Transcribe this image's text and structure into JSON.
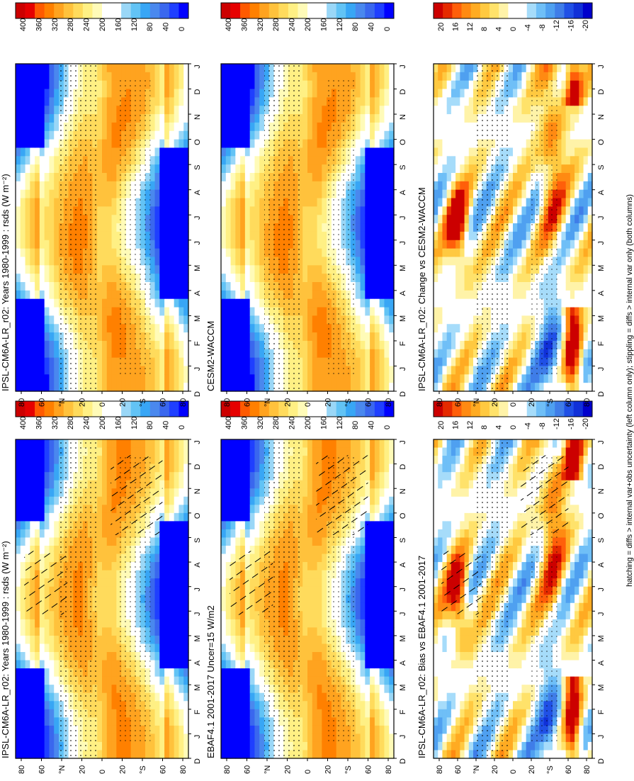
{
  "figure": {
    "footer_note": "hatching = diffs > internal var+obs uncertainty (left column only); stippling = diffs > internal var only (both columns)"
  },
  "colors": {
    "abs_scale": [
      "#0000ff",
      "#1f3fff",
      "#3a67ee",
      "#4a88ee",
      "#38a6f5",
      "#62c3f5",
      "#9ad7f7",
      "#ffffff",
      "#ffffff",
      "#fffbb8",
      "#fff084",
      "#ffdb5c",
      "#ffc23c",
      "#ffa31f",
      "#ff8000",
      "#ff5a00",
      "#e60000",
      "#cc0000"
    ],
    "diff_scale": [
      "#0000cc",
      "#1030d8",
      "#2050e6",
      "#3f7de8",
      "#4fa0f0",
      "#6fbff7",
      "#a6dcfa",
      "#ffffff",
      "#ffffff",
      "#fff3a8",
      "#ffe26a",
      "#ffc940",
      "#ffab22",
      "#ff8a12",
      "#ff5f0a",
      "#e52a00",
      "#cc0000"
    ]
  },
  "chart_data": [
    {
      "panel": "top-left",
      "type": "heatmap",
      "title": "IPSL-CM6A-LR_r02: Years 1980-1999 : rsds (W m⁻²)",
      "months": [
        "D",
        "J",
        "F",
        "M",
        "A",
        "M",
        "J",
        "J",
        "A",
        "S",
        "O",
        "N",
        "D",
        "J"
      ],
      "lat_ticks": [
        "80",
        "60",
        "°N",
        "20",
        "0",
        "20",
        "°S",
        "60",
        "80"
      ],
      "colorbar_ticks": [
        "400",
        "360",
        "320",
        "280",
        "240",
        "200",
        "160",
        "120",
        "80",
        "40",
        "0"
      ],
      "colorbar_range": [
        0,
        420
      ],
      "hatching": true,
      "stippling": true
    },
    {
      "panel": "top-right",
      "type": "heatmap",
      "title": "IPSL-CM6A-LR_r02: Years 1980-1999 : rsds (W m⁻²)",
      "months": [
        "D",
        "J",
        "F",
        "M",
        "A",
        "M",
        "J",
        "J",
        "A",
        "S",
        "O",
        "N",
        "D",
        "J"
      ],
      "lat_ticks": [
        "80",
        "60",
        "°N",
        "20",
        "0",
        "20",
        "°S",
        "60",
        "80"
      ],
      "colorbar_ticks": [
        "400",
        "360",
        "320",
        "280",
        "240",
        "200",
        "160",
        "120",
        "80",
        "40",
        "0"
      ],
      "colorbar_range": [
        0,
        420
      ],
      "hatching": false,
      "stippling": true
    },
    {
      "panel": "middle-left",
      "type": "heatmap",
      "title": "EBAF4.1 2001-2017 Uncer=15 W/m2",
      "months": [
        "D",
        "J",
        "F",
        "M",
        "A",
        "M",
        "J",
        "J",
        "A",
        "S",
        "O",
        "N",
        "D",
        "J"
      ],
      "lat_ticks": [
        "80",
        "60",
        "°N",
        "20",
        "0",
        "20",
        "°S",
        "60",
        "80"
      ],
      "colorbar_ticks": [
        "400",
        "360",
        "320",
        "280",
        "240",
        "200",
        "160",
        "120",
        "80",
        "40",
        "0"
      ],
      "colorbar_range": [
        0,
        420
      ],
      "hatching": true,
      "stippling": true
    },
    {
      "panel": "middle-right",
      "type": "heatmap",
      "title": "CESM2-WACCM",
      "months": [
        "D",
        "J",
        "F",
        "M",
        "A",
        "M",
        "J",
        "J",
        "A",
        "S",
        "O",
        "N",
        "D",
        "J"
      ],
      "lat_ticks": [
        "80",
        "60",
        "°N",
        "20",
        "0",
        "20",
        "°S",
        "60",
        "80"
      ],
      "colorbar_ticks": [
        "400",
        "360",
        "320",
        "280",
        "240",
        "200",
        "160",
        "120",
        "80",
        "40",
        "0"
      ],
      "colorbar_range": [
        0,
        420
      ],
      "hatching": false,
      "stippling": true
    },
    {
      "panel": "bottom-left",
      "type": "heatmap",
      "title": "IPSL-CM6A-LR_r02: Bias vs EBAF4.1 2001-2017",
      "months": [
        "D",
        "J",
        "F",
        "M",
        "A",
        "M",
        "J",
        "J",
        "A",
        "S",
        "O",
        "N",
        "D",
        "J"
      ],
      "lat_ticks": [
        "80",
        "60",
        "°N",
        "20",
        "0",
        "20",
        "°S",
        "60",
        "80"
      ],
      "colorbar_ticks": [
        "20",
        "16",
        "12",
        "8",
        "4",
        "0",
        "-4",
        "-8",
        "-12",
        "-16",
        "-20"
      ],
      "colorbar_range": [
        -22,
        22
      ],
      "hatching": true,
      "stippling": true
    },
    {
      "panel": "bottom-right",
      "type": "heatmap",
      "title": "IPSL-CM6A-LR_r02: Change vs CESM2-WACCM",
      "months": [
        "D",
        "J",
        "F",
        "M",
        "A",
        "M",
        "J",
        "J",
        "A",
        "S",
        "O",
        "N",
        "D",
        "J"
      ],
      "lat_ticks": [
        "80",
        "60",
        "°N",
        "20",
        "0",
        "20",
        "°S",
        "60",
        "80"
      ],
      "colorbar_ticks": [
        "20",
        "16",
        "12",
        "8",
        "4",
        "0",
        "-4",
        "-8",
        "-12",
        "-16",
        "-20"
      ],
      "colorbar_range": [
        -22,
        22
      ],
      "hatching": false,
      "stippling": true
    }
  ]
}
